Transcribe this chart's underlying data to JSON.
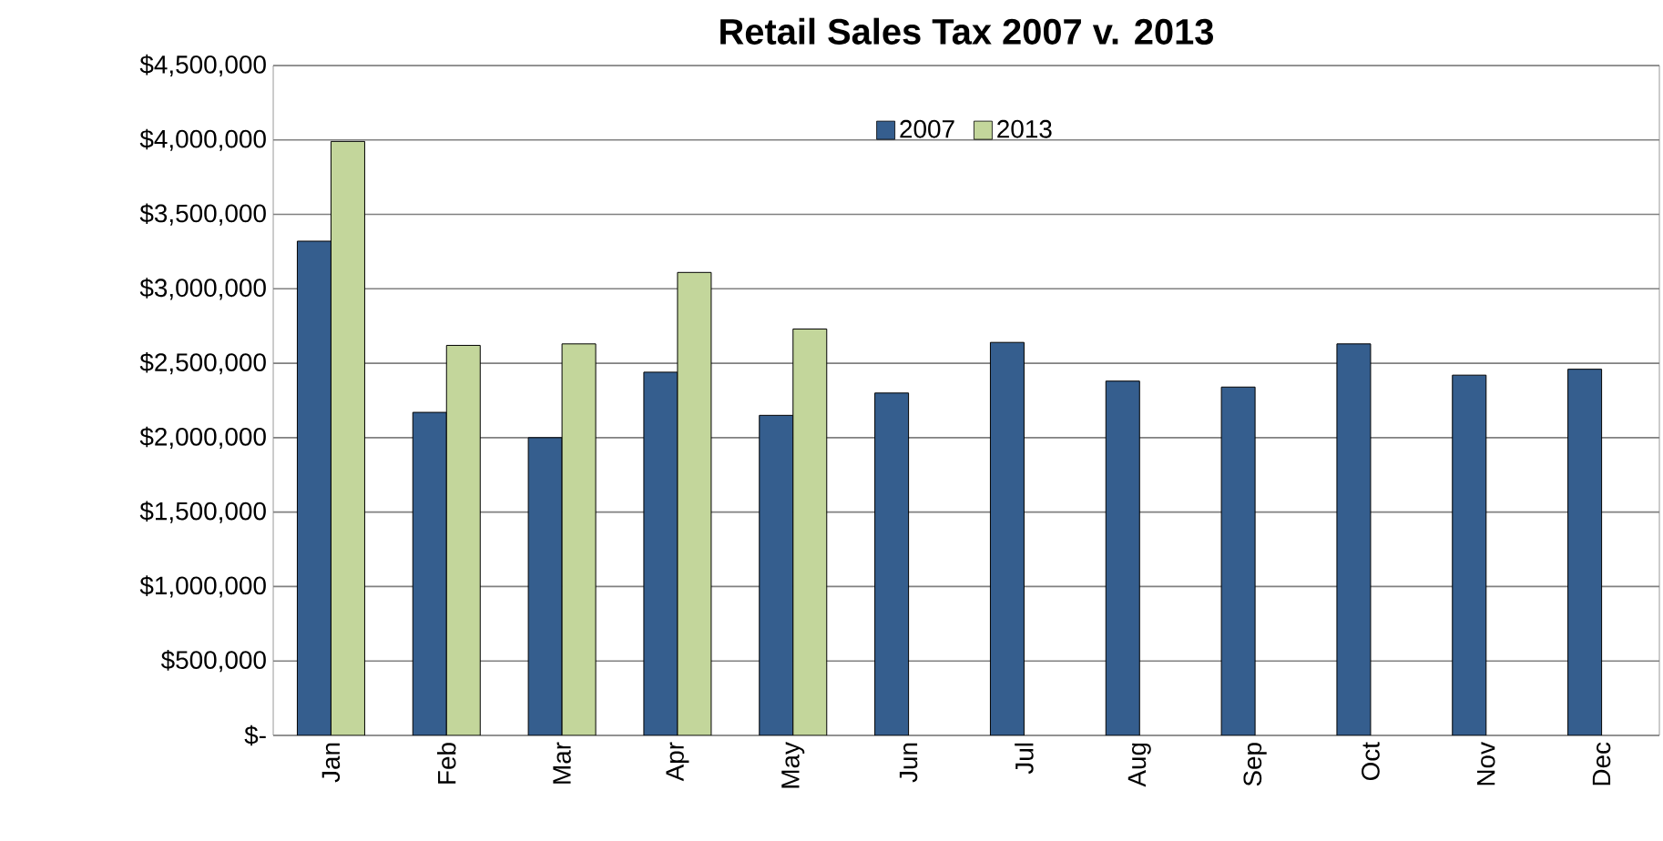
{
  "chart_data": {
    "type": "bar",
    "title": "Retail Sales Tax 2007 v. 2013",
    "categories": [
      "Jan",
      "Feb",
      "Mar",
      "Apr",
      "May",
      "Jun",
      "Jul",
      "Aug",
      "Sep",
      "Oct",
      "Nov",
      "Dec"
    ],
    "series": [
      {
        "name": "2007",
        "color": "#355e8e",
        "values": [
          3320000,
          2170000,
          2000000,
          2440000,
          2150000,
          2300000,
          2640000,
          2380000,
          2340000,
          2630000,
          2420000,
          2460000
        ]
      },
      {
        "name": "2013",
        "color": "#c3d69b",
        "values": [
          3990000,
          2620000,
          2630000,
          3110000,
          2730000,
          null,
          null,
          null,
          null,
          null,
          null,
          null
        ]
      }
    ],
    "ylim": [
      0,
      4500000
    ],
    "yticks": [
      {
        "value": 0,
        "label": "$-"
      },
      {
        "value": 500000,
        "label": "$500,000"
      },
      {
        "value": 1000000,
        "label": "$1,000,000"
      },
      {
        "value": 1500000,
        "label": "$1,500,000"
      },
      {
        "value": 2000000,
        "label": "$2,000,000"
      },
      {
        "value": 2500000,
        "label": "$2,500,000"
      },
      {
        "value": 3000000,
        "label": "$3,000,000"
      },
      {
        "value": 3500000,
        "label": "$3,500,000"
      },
      {
        "value": 4000000,
        "label": "$4,000,000"
      },
      {
        "value": 4500000,
        "label": "$4,500,000"
      }
    ],
    "grid": "y",
    "legend": "top"
  }
}
